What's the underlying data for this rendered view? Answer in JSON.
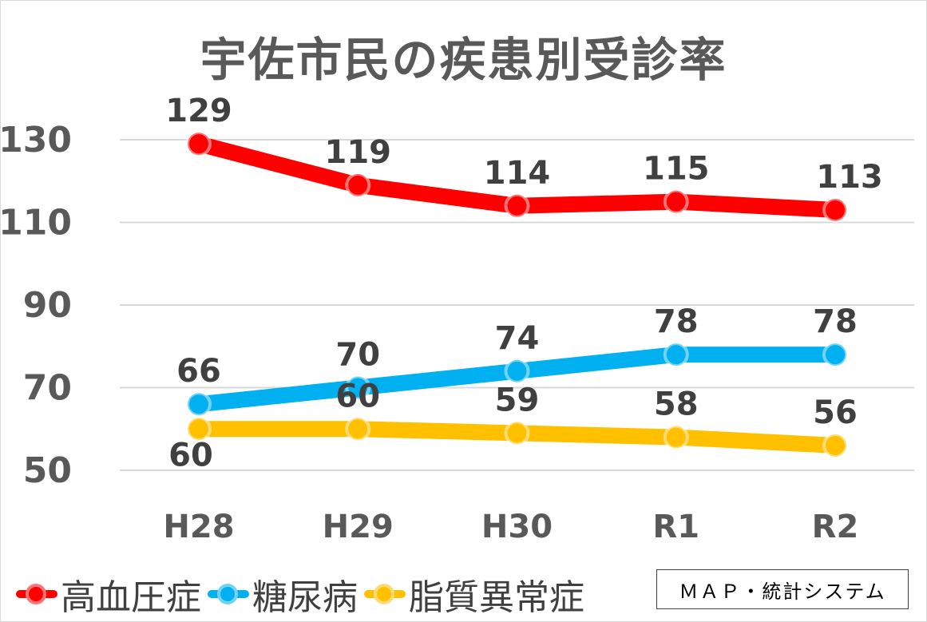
{
  "chart_data": {
    "type": "line",
    "title": "宇佐市民の疾患別受診率",
    "categories": [
      "H28",
      "H29",
      "H30",
      "R1",
      "R2"
    ],
    "series": [
      {
        "name": "高血圧症",
        "values": [
          129,
          119,
          114,
          115,
          113
        ],
        "color": "#ff0000"
      },
      {
        "name": "糖尿病",
        "values": [
          66,
          70,
          74,
          78,
          78
        ],
        "color": "#00b0f0"
      },
      {
        "name": "脂質異常症",
        "values": [
          60,
          60,
          59,
          58,
          56
        ],
        "color": "#ffc000"
      }
    ],
    "y_ticks": [
      "130",
      "110",
      "90",
      "70",
      "50"
    ],
    "y_tick_values": [
      130,
      110,
      90,
      70,
      50
    ],
    "ylim": [
      50,
      130
    ],
    "grid": true,
    "legend": "bottom-left"
  },
  "source_label": "ＭＡＰ・統計システム"
}
